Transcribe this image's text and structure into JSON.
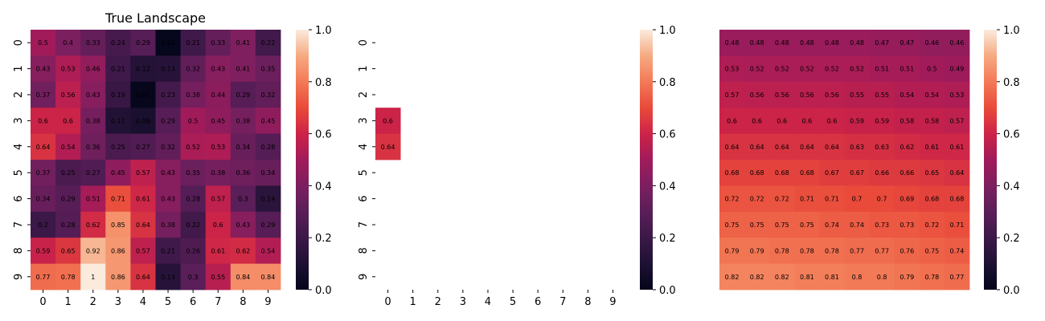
{
  "chart_data": [
    {
      "type": "heatmap",
      "title": "True Landscape",
      "x_ticks": [
        "0",
        "1",
        "2",
        "3",
        "4",
        "5",
        "6",
        "7",
        "8",
        "9"
      ],
      "y_ticks": [
        "0",
        "1",
        "2",
        "3",
        "4",
        "5",
        "6",
        "7",
        "8",
        "9"
      ],
      "show_x_ticks": true,
      "show_y_ticks": true,
      "value_range": [
        0,
        1
      ],
      "colorbar_ticks": [
        "0.0",
        "0.2",
        "0.4",
        "0.6",
        "0.8",
        "1.0"
      ],
      "colormap": "rocket",
      "values": [
        [
          0.5,
          0.4,
          0.33,
          0.24,
          0.29,
          0.01,
          0.21,
          0.33,
          0.41,
          0.22
        ],
        [
          0.43,
          0.53,
          0.46,
          0.21,
          0.12,
          0.13,
          0.32,
          0.43,
          0.41,
          0.35
        ],
        [
          0.37,
          0.56,
          0.43,
          0.19,
          0.01,
          0.23,
          0.38,
          0.44,
          0.29,
          0.32
        ],
        [
          0.6,
          0.6,
          0.38,
          0.11,
          0.08,
          0.29,
          0.5,
          0.45,
          0.38,
          0.45
        ],
        [
          0.64,
          0.54,
          0.36,
          0.25,
          0.27,
          0.32,
          0.52,
          0.53,
          0.34,
          0.28
        ],
        [
          0.37,
          0.25,
          0.27,
          0.45,
          0.57,
          0.43,
          0.35,
          0.38,
          0.36,
          0.34
        ],
        [
          0.34,
          0.29,
          0.51,
          0.71,
          0.61,
          0.43,
          0.28,
          0.57,
          0.3,
          0.14
        ],
        [
          0.2,
          0.28,
          0.62,
          0.85,
          0.64,
          0.38,
          0.22,
          0.6,
          0.43,
          0.29
        ],
        [
          0.59,
          0.65,
          0.92,
          0.86,
          0.57,
          0.21,
          0.26,
          0.61,
          0.62,
          0.54
        ],
        [
          0.77,
          0.78,
          1,
          0.86,
          0.64,
          0.13,
          0.3,
          0.55,
          0.84,
          0.84
        ]
      ]
    },
    {
      "type": "heatmap",
      "title": "",
      "x_ticks": [
        "0",
        "1",
        "2",
        "3",
        "4",
        "5",
        "6",
        "7",
        "8",
        "9"
      ],
      "y_ticks": [
        "0",
        "1",
        "2",
        "3",
        "4",
        "5",
        "6",
        "7",
        "8",
        "9"
      ],
      "show_x_ticks": true,
      "show_y_ticks": true,
      "value_range": [
        0,
        1
      ],
      "colorbar_ticks": [
        "0.0",
        "0.2",
        "0.4",
        "0.6",
        "0.8",
        "1.0"
      ],
      "colormap": "rocket",
      "values": [
        [
          null,
          null,
          null,
          null,
          null,
          null,
          null,
          null,
          null,
          null
        ],
        [
          null,
          null,
          null,
          null,
          null,
          null,
          null,
          null,
          null,
          null
        ],
        [
          null,
          null,
          null,
          null,
          null,
          null,
          null,
          null,
          null,
          null
        ],
        [
          0.6,
          null,
          null,
          null,
          null,
          null,
          null,
          null,
          null,
          null
        ],
        [
          0.64,
          null,
          null,
          null,
          null,
          null,
          null,
          null,
          null,
          null
        ],
        [
          null,
          null,
          null,
          null,
          null,
          null,
          null,
          null,
          null,
          null
        ],
        [
          null,
          null,
          null,
          null,
          null,
          null,
          null,
          null,
          null,
          null
        ],
        [
          null,
          null,
          null,
          null,
          null,
          null,
          null,
          null,
          null,
          null
        ],
        [
          null,
          null,
          null,
          null,
          null,
          null,
          null,
          null,
          null,
          null
        ],
        [
          null,
          null,
          null,
          null,
          null,
          null,
          null,
          null,
          null,
          null
        ]
      ]
    },
    {
      "type": "heatmap",
      "title": "",
      "x_ticks": [],
      "y_ticks": [],
      "show_x_ticks": false,
      "show_y_ticks": false,
      "value_range": [
        0,
        1
      ],
      "colorbar_ticks": [
        "0.0",
        "0.2",
        "0.4",
        "0.6",
        "0.8",
        "1.0"
      ],
      "colormap": "rocket",
      "values": [
        [
          0.48,
          0.48,
          0.48,
          0.48,
          0.48,
          0.48,
          0.47,
          0.47,
          0.46,
          0.46
        ],
        [
          0.53,
          0.52,
          0.52,
          0.52,
          0.52,
          0.52,
          0.51,
          0.51,
          0.5,
          0.49
        ],
        [
          0.57,
          0.56,
          0.56,
          0.56,
          0.56,
          0.55,
          0.55,
          0.54,
          0.54,
          0.53
        ],
        [
          0.6,
          0.6,
          0.6,
          0.6,
          0.6,
          0.59,
          0.59,
          0.58,
          0.58,
          0.57
        ],
        [
          0.64,
          0.64,
          0.64,
          0.64,
          0.64,
          0.63,
          0.63,
          0.62,
          0.61,
          0.61
        ],
        [
          0.68,
          0.68,
          0.68,
          0.68,
          0.67,
          0.67,
          0.66,
          0.66,
          0.65,
          0.64
        ],
        [
          0.72,
          0.72,
          0.72,
          0.71,
          0.71,
          0.7,
          0.7,
          0.69,
          0.68,
          0.68
        ],
        [
          0.75,
          0.75,
          0.75,
          0.75,
          0.74,
          0.74,
          0.73,
          0.73,
          0.72,
          0.71
        ],
        [
          0.79,
          0.79,
          0.78,
          0.78,
          0.78,
          0.77,
          0.77,
          0.76,
          0.75,
          0.74
        ],
        [
          0.82,
          0.82,
          0.82,
          0.81,
          0.81,
          0.8,
          0.8,
          0.79,
          0.78,
          0.77
        ]
      ]
    }
  ]
}
